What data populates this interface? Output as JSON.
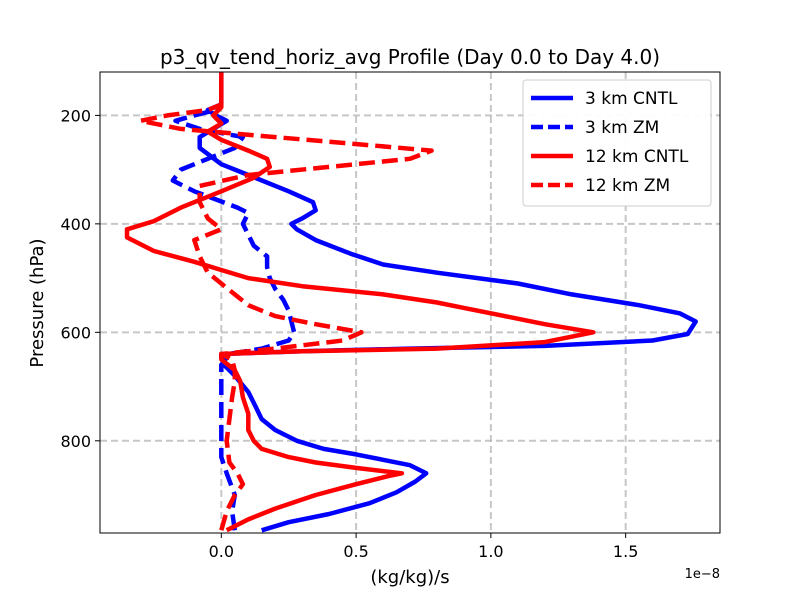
{
  "chart_data": {
    "type": "line",
    "title": "p3_qv_tend_horiz_avg Profile (Day 0.0 to Day 4.0)",
    "xlabel": "(kg/kg)/s",
    "ylabel": "Pressure (hPa)",
    "x_multiplier_label": "1e−8",
    "xlim": [
      -0.45,
      1.85
    ],
    "ylim": [
      970,
      120
    ],
    "y_inverted": true,
    "grid": true,
    "legend_position": "top-right",
    "x_ticks": [
      0.0,
      0.5,
      1.0,
      1.5
    ],
    "x_tick_labels": [
      "0.0",
      "0.5",
      "1.0",
      "1.5"
    ],
    "y_ticks": [
      200,
      400,
      600,
      800
    ],
    "y_tick_labels": [
      "200",
      "400",
      "600",
      "800"
    ],
    "series": [
      {
        "name": "3 km CNTL",
        "color": "#0000ff",
        "style": "solid",
        "points": [
          [
            0.15,
            965
          ],
          [
            0.25,
            950
          ],
          [
            0.4,
            935
          ],
          [
            0.55,
            915
          ],
          [
            0.65,
            895
          ],
          [
            0.72,
            875
          ],
          [
            0.76,
            860
          ],
          [
            0.7,
            845
          ],
          [
            0.6,
            835
          ],
          [
            0.5,
            825
          ],
          [
            0.38,
            815
          ],
          [
            0.28,
            800
          ],
          [
            0.2,
            780
          ],
          [
            0.15,
            760
          ],
          [
            0.12,
            730
          ],
          [
            0.1,
            710
          ],
          [
            0.05,
            680
          ],
          [
            0.01,
            660
          ],
          [
            0.0,
            645
          ],
          [
            0.0,
            640
          ],
          [
            0.3,
            635
          ],
          [
            0.7,
            630
          ],
          [
            1.2,
            625
          ],
          [
            1.6,
            615
          ],
          [
            1.73,
            603
          ],
          [
            1.76,
            580
          ],
          [
            1.7,
            565
          ],
          [
            1.55,
            550
          ],
          [
            1.3,
            530
          ],
          [
            1.1,
            510
          ],
          [
            0.8,
            490
          ],
          [
            0.6,
            475
          ],
          [
            0.48,
            455
          ],
          [
            0.35,
            430
          ],
          [
            0.28,
            410
          ],
          [
            0.26,
            400
          ],
          [
            0.3,
            390
          ],
          [
            0.35,
            375
          ],
          [
            0.34,
            360
          ],
          [
            0.25,
            340
          ],
          [
            0.1,
            310
          ],
          [
            0.0,
            290
          ],
          [
            -0.08,
            260
          ],
          [
            -0.08,
            240
          ],
          [
            -0.03,
            225
          ],
          [
            0.02,
            210
          ],
          [
            -0.02,
            200
          ],
          [
            -0.05,
            190
          ],
          [
            0.0,
            180
          ],
          [
            0.0,
            160
          ],
          [
            0.0,
            120
          ]
        ]
      },
      {
        "name": "3 km ZM",
        "color": "#0000ff",
        "style": "dashed",
        "points": [
          [
            0.05,
            965
          ],
          [
            0.04,
            930
          ],
          [
            0.05,
            900
          ],
          [
            0.02,
            860
          ],
          [
            0.0,
            830
          ],
          [
            0.0,
            800
          ],
          [
            0.0,
            760
          ],
          [
            0.0,
            720
          ],
          [
            0.0,
            690
          ],
          [
            0.0,
            660
          ],
          [
            0.03,
            640
          ],
          [
            0.15,
            630
          ],
          [
            0.25,
            615
          ],
          [
            0.27,
            600
          ],
          [
            0.26,
            580
          ],
          [
            0.25,
            560
          ],
          [
            0.23,
            540
          ],
          [
            0.2,
            520
          ],
          [
            0.18,
            500
          ],
          [
            0.17,
            480
          ],
          [
            0.17,
            460
          ],
          [
            0.12,
            440
          ],
          [
            0.1,
            420
          ],
          [
            0.08,
            400
          ],
          [
            0.1,
            380
          ],
          [
            0.06,
            370
          ],
          [
            -0.1,
            340
          ],
          [
            -0.18,
            320
          ],
          [
            -0.15,
            300
          ],
          [
            -0.05,
            280
          ],
          [
            0.05,
            260
          ],
          [
            0.08,
            240
          ],
          [
            -0.08,
            225
          ],
          [
            -0.17,
            210
          ],
          [
            -0.1,
            200
          ],
          [
            -0.02,
            190
          ],
          [
            0.0,
            180
          ]
        ]
      },
      {
        "name": "12 km CNTL",
        "color": "#ff0000",
        "style": "solid",
        "points": [
          [
            0.02,
            965
          ],
          [
            0.1,
            945
          ],
          [
            0.2,
            925
          ],
          [
            0.35,
            900
          ],
          [
            0.5,
            880
          ],
          [
            0.62,
            865
          ],
          [
            0.67,
            860
          ],
          [
            0.5,
            850
          ],
          [
            0.35,
            840
          ],
          [
            0.25,
            830
          ],
          [
            0.15,
            815
          ],
          [
            0.12,
            800
          ],
          [
            0.1,
            780
          ],
          [
            0.1,
            750
          ],
          [
            0.08,
            720
          ],
          [
            0.07,
            690
          ],
          [
            0.05,
            670
          ],
          [
            0.0,
            650
          ],
          [
            0.0,
            640
          ],
          [
            0.3,
            635
          ],
          [
            0.8,
            630
          ],
          [
            1.2,
            618
          ],
          [
            1.38,
            600
          ],
          [
            1.2,
            585
          ],
          [
            1.0,
            565
          ],
          [
            0.9,
            555
          ],
          [
            0.8,
            545
          ],
          [
            0.6,
            530
          ],
          [
            0.3,
            515
          ],
          [
            0.1,
            500
          ],
          [
            0.0,
            485
          ],
          [
            -0.1,
            470
          ],
          [
            -0.25,
            450
          ],
          [
            -0.35,
            425
          ],
          [
            -0.35,
            410
          ],
          [
            -0.25,
            395
          ],
          [
            -0.15,
            370
          ],
          [
            0.0,
            340
          ],
          [
            0.12,
            315
          ],
          [
            0.18,
            295
          ],
          [
            0.17,
            280
          ],
          [
            0.1,
            265
          ],
          [
            0.0,
            245
          ],
          [
            -0.05,
            230
          ],
          [
            0.0,
            215
          ],
          [
            -0.03,
            200
          ],
          [
            0.0,
            185
          ],
          [
            0.0,
            160
          ],
          [
            0.0,
            120
          ]
        ]
      },
      {
        "name": "12 km ZM",
        "color": "#ff0000",
        "style": "dashed",
        "points": [
          [
            0.0,
            965
          ],
          [
            0.02,
            930
          ],
          [
            0.05,
            900
          ],
          [
            0.08,
            880
          ],
          [
            0.06,
            860
          ],
          [
            0.03,
            840
          ],
          [
            0.02,
            800
          ],
          [
            0.03,
            760
          ],
          [
            0.04,
            720
          ],
          [
            0.05,
            690
          ],
          [
            0.05,
            670
          ],
          [
            0.04,
            650
          ],
          [
            0.0,
            640
          ],
          [
            0.2,
            630
          ],
          [
            0.45,
            615
          ],
          [
            0.52,
            600
          ],
          [
            0.35,
            585
          ],
          [
            0.2,
            570
          ],
          [
            0.1,
            550
          ],
          [
            0.05,
            530
          ],
          [
            0.0,
            510
          ],
          [
            -0.05,
            490
          ],
          [
            -0.08,
            460
          ],
          [
            -0.1,
            430
          ],
          [
            0.0,
            410
          ],
          [
            -0.05,
            390
          ],
          [
            -0.08,
            360
          ],
          [
            -0.08,
            330
          ],
          [
            0.1,
            310
          ],
          [
            0.4,
            295
          ],
          [
            0.7,
            280
          ],
          [
            0.78,
            265
          ],
          [
            0.55,
            255
          ],
          [
            0.2,
            240
          ],
          [
            -0.15,
            225
          ],
          [
            -0.3,
            210
          ],
          [
            -0.2,
            200
          ],
          [
            -0.05,
            190
          ],
          [
            0.0,
            180
          ]
        ]
      }
    ]
  }
}
